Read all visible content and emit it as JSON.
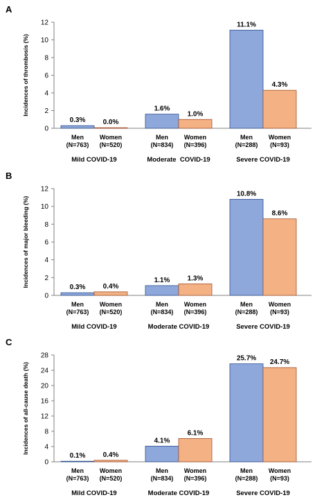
{
  "chart_data": [
    {
      "type": "bar",
      "panel": "A",
      "ylabel": "Incidences of thrombosis (%)",
      "ylim": [
        0,
        12
      ],
      "yticks": [
        "0",
        "2",
        "4",
        "6",
        "8",
        "10",
        "12"
      ],
      "groups": [
        "Mild COVID-19",
        "Moderate  COVID-19",
        "Severe COVID-19"
      ],
      "bars": [
        {
          "sex": "Men",
          "n": "(N=763)",
          "value": 0.3,
          "label": "0.3%",
          "color": "#8EA8DB"
        },
        {
          "sex": "Women",
          "n": "(N=520)",
          "value": 0.0,
          "label": "0.0%",
          "color": "#F4B183"
        },
        {
          "sex": "Men",
          "n": "(N=834)",
          "value": 1.6,
          "label": "1.6%",
          "color": "#8EA8DB"
        },
        {
          "sex": "Women",
          "n": "(N=396)",
          "value": 1.0,
          "label": "1.0%",
          "color": "#F4B183"
        },
        {
          "sex": "Men",
          "n": "(N=288)",
          "value": 11.1,
          "label": "11.1%",
          "color": "#8EA8DB"
        },
        {
          "sex": "Women",
          "n": "(N=93)",
          "value": 4.3,
          "label": "4.3%",
          "color": "#F4B183"
        }
      ]
    },
    {
      "type": "bar",
      "panel": "B",
      "ylabel": "Incidences of major bleeding (%)",
      "ylim": [
        0,
        12
      ],
      "yticks": [
        "0",
        "2",
        "4",
        "6",
        "8",
        "10",
        "12"
      ],
      "groups": [
        "Mild COVID-19",
        "Moderate COVID-19",
        "Severe COVID-19"
      ],
      "bars": [
        {
          "sex": "Men",
          "n": "(N=763)",
          "value": 0.3,
          "label": "0.3%",
          "color": "#8EA8DB"
        },
        {
          "sex": "Women",
          "n": "(N=520)",
          "value": 0.4,
          "label": "0.4%",
          "color": "#F4B183"
        },
        {
          "sex": "Men",
          "n": "(N=834)",
          "value": 1.1,
          "label": "1.1%",
          "color": "#8EA8DB"
        },
        {
          "sex": "Women",
          "n": "(N=396)",
          "value": 1.3,
          "label": "1.3%",
          "color": "#F4B183"
        },
        {
          "sex": "Men",
          "n": "(N=288)",
          "value": 10.8,
          "label": "10.8%",
          "color": "#8EA8DB"
        },
        {
          "sex": "Women",
          "n": "(N=93)",
          "value": 8.6,
          "label": "8.6%",
          "color": "#F4B183"
        }
      ]
    },
    {
      "type": "bar",
      "panel": "C",
      "ylabel": "Incidences of all-cause death (%)",
      "ylim": [
        0,
        28
      ],
      "yticks": [
        "0",
        "4",
        "8",
        "12",
        "16",
        "20",
        "24",
        "28"
      ],
      "groups": [
        "Mild COVID-19",
        "Moderate COVID-19",
        "Severe COVID-19"
      ],
      "bars": [
        {
          "sex": "Men",
          "n": "(N=763)",
          "value": 0.1,
          "label": "0.1%",
          "color": "#8EA8DB"
        },
        {
          "sex": "Women",
          "n": "(N=520)",
          "value": 0.4,
          "label": "0.4%",
          "color": "#F4B183"
        },
        {
          "sex": "Men",
          "n": "(N=834)",
          "value": 4.1,
          "label": "4.1%",
          "color": "#8EA8DB"
        },
        {
          "sex": "Women",
          "n": "(N=396)",
          "value": 6.1,
          "label": "6.1%",
          "color": "#F4B183"
        },
        {
          "sex": "Men",
          "n": "(N=288)",
          "value": 25.7,
          "label": "25.7%",
          "color": "#8EA8DB"
        },
        {
          "sex": "Women",
          "n": "(N=93)",
          "value": 24.7,
          "label": "24.7%",
          "color": "#F4B183"
        }
      ]
    }
  ]
}
